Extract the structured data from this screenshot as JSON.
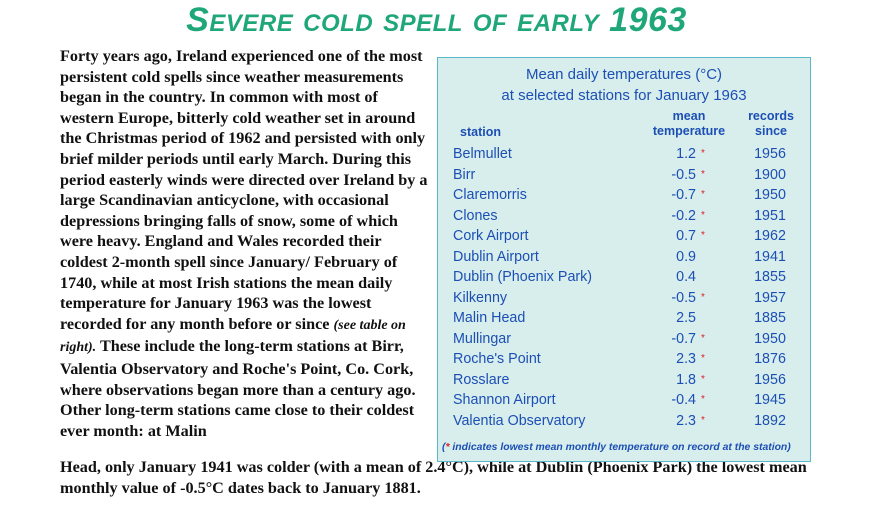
{
  "title": "Severe cold spell of early 1963",
  "article": {
    "paragraph_main": "Forty years ago, Ireland experienced one of the most persistent cold spells since weather measurements began in the country. In common with most of western Europe, bitterly cold weather set in around the Christmas period of 1962 and persisted with only brief milder periods until early March. During this period easterly winds were directed over Ireland by a large Scandinavian anticyclone, with occasional depressions bringing falls of snow, some of which were heavy. England and Wales recorded their coldest 2-month spell since January/ February of 1740, while at most Irish stations the mean daily temperature for January 1963 was the lowest recorded for any month before or since",
    "table_ref": "(see table on right).",
    "paragraph_cont": " These include the long-term stations at Birr, Valentia Observatory and Roche's Point, Co. Cork, where observations began more than a century ago. Other long-term stations came close to their coldest ever month: at Malin",
    "paragraph_bottom": "Head, only January 1941 was colder (with a mean of 2.4°C), while at Dublin (Phoenix Park) the lowest mean monthly value of -0.5°C dates back to January 1881."
  },
  "table": {
    "title_line1": "Mean daily temperatures (°C)",
    "title_line2": "at selected stations for January 1963",
    "col_station": "station",
    "col_mean_1": "mean",
    "col_mean_2": "temperature",
    "col_records_1": "records",
    "col_records_2": "since",
    "rows": [
      {
        "station": "Belmullet",
        "mean": "1.2",
        "flag": "*",
        "since": "1956"
      },
      {
        "station": "Birr",
        "mean": "-0.5",
        "flag": "*",
        "since": "1900"
      },
      {
        "station": "Claremorris",
        "mean": "-0.7",
        "flag": "*",
        "since": "1950"
      },
      {
        "station": "Clones",
        "mean": "-0.2",
        "flag": "*",
        "since": "1951"
      },
      {
        "station": "Cork Airport",
        "mean": "0.7",
        "flag": "*",
        "since": "1962"
      },
      {
        "station": "Dublin Airport",
        "mean": "0.9",
        "flag": "",
        "since": "1941"
      },
      {
        "station": "Dublin (Phoenix Park)",
        "mean": "0.4",
        "flag": "",
        "since": "1855"
      },
      {
        "station": "Kilkenny",
        "mean": "-0.5",
        "flag": "*",
        "since": "1957"
      },
      {
        "station": "Malin Head",
        "mean": "2.5",
        "flag": "",
        "since": "1885"
      },
      {
        "station": "Mullingar",
        "mean": "-0.7",
        "flag": "*",
        "since": "1950"
      },
      {
        "station": "Roche's Point",
        "mean": "2.3",
        "flag": "*",
        "since": "1876"
      },
      {
        "station": "Rosslare",
        "mean": "1.8",
        "flag": "*",
        "since": "1956"
      },
      {
        "station": "Shannon Airport",
        "mean": "-0.4",
        "flag": "*",
        "since": "1945"
      },
      {
        "station": "Valentia Observatory",
        "mean": "2.3",
        "flag": "*",
        "since": "1892"
      }
    ],
    "footnote_open": "(",
    "footnote_star": "*",
    "footnote_text": " indicates lowest mean monthly temperature on record at the station)"
  },
  "colors": {
    "title": "#1fa77a",
    "table_bg": "#d8eeec",
    "table_border": "#58b8c7",
    "table_text": "#1c4fb5",
    "asterisk": "#d8212a"
  }
}
